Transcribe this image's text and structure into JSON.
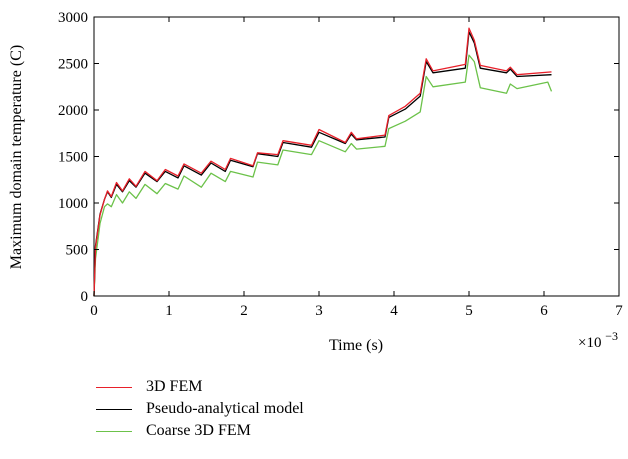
{
  "chart_data": {
    "type": "line",
    "xlabel": "Time (s)",
    "ylabel": "Maximum domain temperature (C)",
    "x_multiplier_label": "×10",
    "x_multiplier_exp": "−3",
    "xlim": [
      0,
      7
    ],
    "ylim": [
      0,
      3000
    ],
    "xticks": [
      "0",
      "1",
      "2",
      "3",
      "4",
      "5",
      "6",
      "7"
    ],
    "yticks": [
      "0",
      "500",
      "1000",
      "1500",
      "2000",
      "2500",
      "3000"
    ],
    "grid": false,
    "legend_position": "below",
    "series": [
      {
        "name": "3D FEM",
        "color": "#e8202a",
        "points": [
          [
            0,
            0
          ],
          [
            0.02,
            520
          ],
          [
            0.08,
            870
          ],
          [
            0.14,
            1040
          ],
          [
            0.18,
            1130
          ],
          [
            0.23,
            1070
          ],
          [
            0.3,
            1220
          ],
          [
            0.38,
            1130
          ],
          [
            0.47,
            1260
          ],
          [
            0.56,
            1180
          ],
          [
            0.68,
            1340
          ],
          [
            0.84,
            1240
          ],
          [
            0.95,
            1360
          ],
          [
            1.12,
            1290
          ],
          [
            1.2,
            1420
          ],
          [
            1.43,
            1320
          ],
          [
            1.56,
            1450
          ],
          [
            1.75,
            1360
          ],
          [
            1.82,
            1480
          ],
          [
            2.12,
            1400
          ],
          [
            2.18,
            1540
          ],
          [
            2.45,
            1520
          ],
          [
            2.52,
            1670
          ],
          [
            2.9,
            1620
          ],
          [
            3.0,
            1790
          ],
          [
            3.35,
            1650
          ],
          [
            3.43,
            1760
          ],
          [
            3.5,
            1690
          ],
          [
            3.88,
            1730
          ],
          [
            3.93,
            1940
          ],
          [
            4.15,
            2040
          ],
          [
            4.35,
            2180
          ],
          [
            4.43,
            2550
          ],
          [
            4.52,
            2420
          ],
          [
            4.95,
            2490
          ],
          [
            5.0,
            2880
          ],
          [
            5.07,
            2750
          ],
          [
            5.15,
            2480
          ],
          [
            5.5,
            2420
          ],
          [
            5.55,
            2460
          ],
          [
            5.64,
            2380
          ],
          [
            6.1,
            2410
          ]
        ]
      },
      {
        "name": "Pseudo-analytical model",
        "color": "#000000",
        "points": [
          [
            0,
            0
          ],
          [
            0.02,
            540
          ],
          [
            0.08,
            880
          ],
          [
            0.14,
            1040
          ],
          [
            0.18,
            1120
          ],
          [
            0.23,
            1060
          ],
          [
            0.3,
            1200
          ],
          [
            0.38,
            1120
          ],
          [
            0.47,
            1240
          ],
          [
            0.56,
            1170
          ],
          [
            0.68,
            1320
          ],
          [
            0.84,
            1230
          ],
          [
            0.95,
            1340
          ],
          [
            1.12,
            1270
          ],
          [
            1.2,
            1400
          ],
          [
            1.43,
            1300
          ],
          [
            1.56,
            1430
          ],
          [
            1.75,
            1340
          ],
          [
            1.82,
            1460
          ],
          [
            2.12,
            1390
          ],
          [
            2.18,
            1530
          ],
          [
            2.45,
            1500
          ],
          [
            2.52,
            1650
          ],
          [
            2.9,
            1600
          ],
          [
            3.0,
            1760
          ],
          [
            3.35,
            1640
          ],
          [
            3.43,
            1740
          ],
          [
            3.5,
            1680
          ],
          [
            3.88,
            1710
          ],
          [
            3.93,
            1920
          ],
          [
            4.15,
            2010
          ],
          [
            4.35,
            2150
          ],
          [
            4.43,
            2520
          ],
          [
            4.52,
            2400
          ],
          [
            4.95,
            2450
          ],
          [
            5.0,
            2840
          ],
          [
            5.07,
            2720
          ],
          [
            5.15,
            2450
          ],
          [
            5.5,
            2400
          ],
          [
            5.55,
            2440
          ],
          [
            5.64,
            2360
          ],
          [
            6.1,
            2380
          ]
        ]
      },
      {
        "name": "Coarse 3D FEM",
        "color": "#6cc24a",
        "points": [
          [
            0,
            0
          ],
          [
            0.02,
            400
          ],
          [
            0.08,
            780
          ],
          [
            0.14,
            960
          ],
          [
            0.18,
            990
          ],
          [
            0.23,
            960
          ],
          [
            0.3,
            1090
          ],
          [
            0.38,
            1000
          ],
          [
            0.47,
            1120
          ],
          [
            0.56,
            1050
          ],
          [
            0.68,
            1200
          ],
          [
            0.84,
            1100
          ],
          [
            0.95,
            1210
          ],
          [
            1.12,
            1150
          ],
          [
            1.2,
            1290
          ],
          [
            1.43,
            1170
          ],
          [
            1.56,
            1320
          ],
          [
            1.75,
            1230
          ],
          [
            1.82,
            1340
          ],
          [
            2.12,
            1280
          ],
          [
            2.18,
            1440
          ],
          [
            2.45,
            1410
          ],
          [
            2.52,
            1570
          ],
          [
            2.9,
            1520
          ],
          [
            3.0,
            1670
          ],
          [
            3.35,
            1550
          ],
          [
            3.43,
            1640
          ],
          [
            3.5,
            1580
          ],
          [
            3.88,
            1610
          ],
          [
            3.93,
            1800
          ],
          [
            4.15,
            1880
          ],
          [
            4.35,
            1980
          ],
          [
            4.43,
            2360
          ],
          [
            4.52,
            2250
          ],
          [
            4.95,
            2300
          ],
          [
            5.0,
            2590
          ],
          [
            5.07,
            2520
          ],
          [
            5.15,
            2240
          ],
          [
            5.5,
            2180
          ],
          [
            5.55,
            2280
          ],
          [
            5.64,
            2230
          ],
          [
            6.05,
            2300
          ],
          [
            6.1,
            2200
          ]
        ]
      }
    ]
  }
}
